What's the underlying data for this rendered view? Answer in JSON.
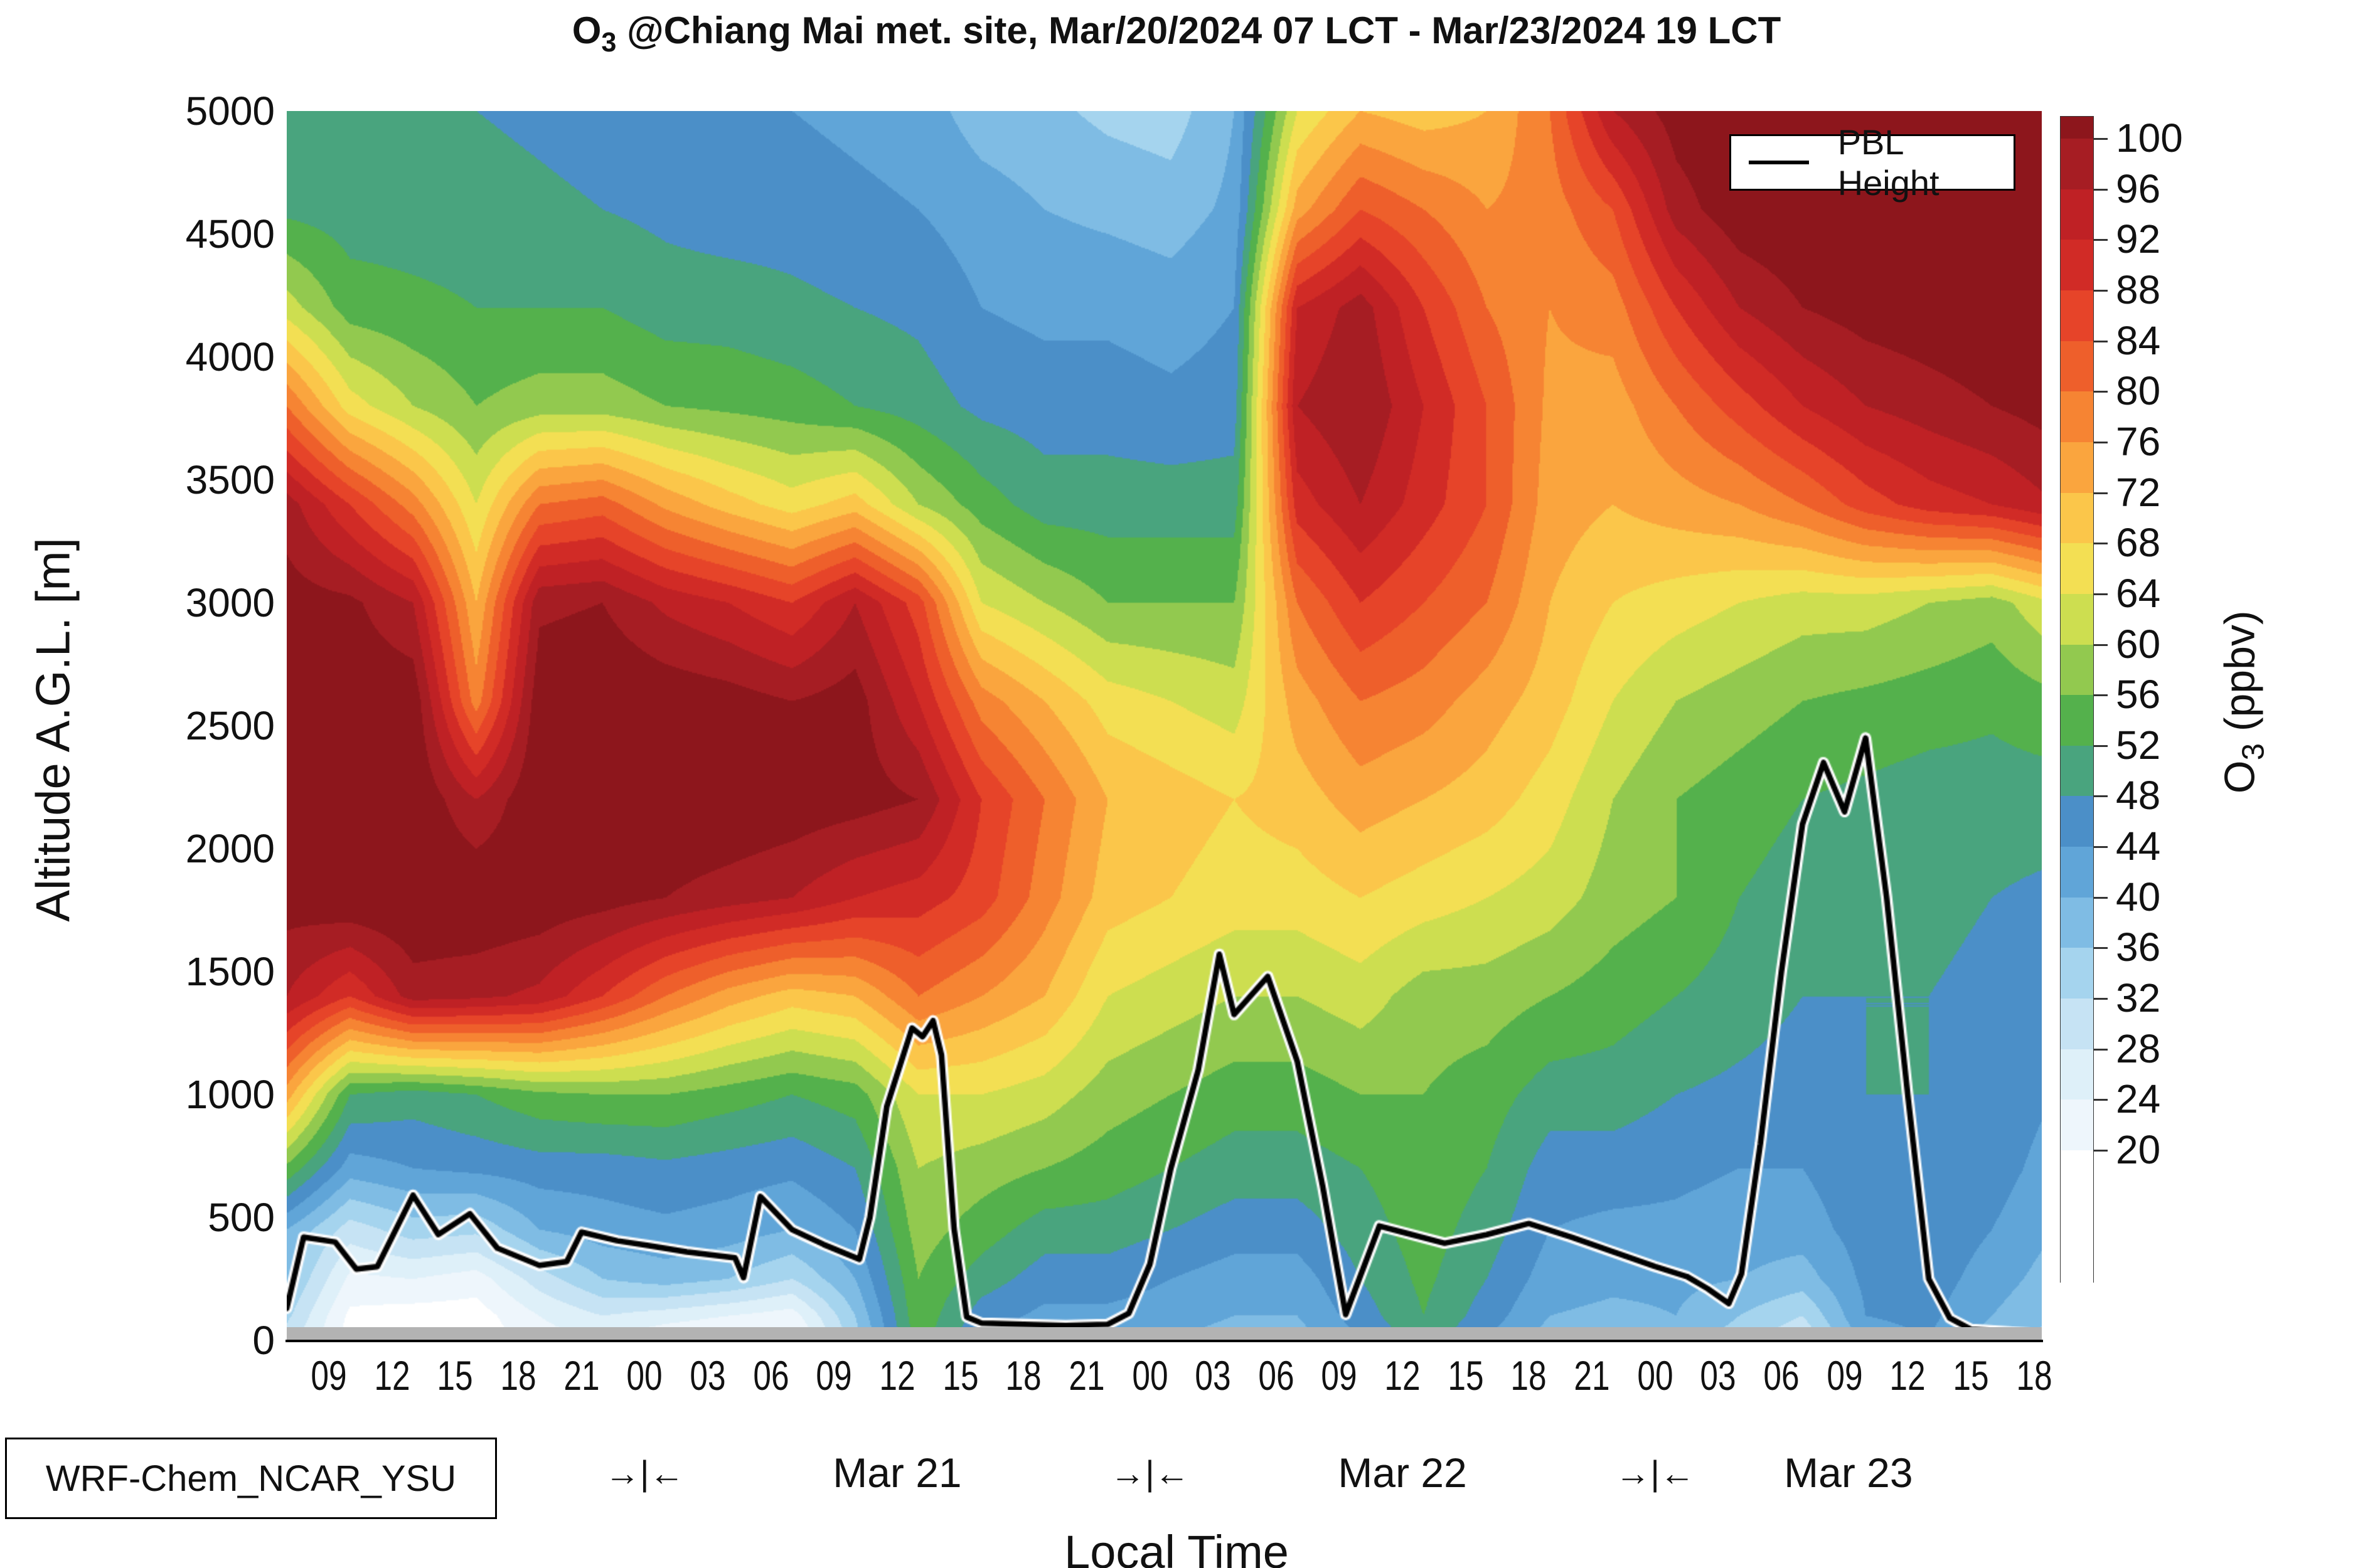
{
  "title": {
    "prefix": "O",
    "sub": "3",
    "rest": " @Chiang Mai met. site, Mar/20/2024 07 LCT - Mar/23/2024 19 LCT",
    "full": "O3 @Chiang Mai met. site, Mar/20/2024 07 LCT - Mar/23/2024 19 LCT"
  },
  "axes": {
    "ylabel": "Altitude A.G.L. [m]",
    "xlabel": "Local Time",
    "y_ticks": [
      5000,
      4500,
      4000,
      3500,
      3000,
      2500,
      2000,
      1500,
      1000,
      500,
      0
    ],
    "x_tick_labels": [
      "09",
      "12",
      "15",
      "18",
      "21",
      "00",
      "03",
      "06",
      "09",
      "12",
      "15",
      "18",
      "21",
      "00",
      "03",
      "06",
      "09",
      "12",
      "15",
      "18",
      "21",
      "00",
      "03",
      "06",
      "09",
      "12",
      "15",
      "18"
    ],
    "day_labels": [
      "Mar 21",
      "Mar 22",
      "Mar 23"
    ],
    "day_marker": "→|←"
  },
  "annotation_box": {
    "text": "WRF-Chem_NCAR_YSU"
  },
  "legend": {
    "label": "PBL Height",
    "line_color": "#000000"
  },
  "colorbar": {
    "label": {
      "prefix": "O",
      "sub": "3",
      "rest": " (ppbv)",
      "full": "O3 (ppbv)"
    },
    "ticks": [
      100,
      96,
      92,
      88,
      84,
      80,
      76,
      72,
      68,
      64,
      60,
      56,
      52,
      48,
      44,
      40,
      36,
      32,
      28,
      24,
      20
    ],
    "band_colors_low_to_high": [
      "#ffffff",
      "#eef6fc",
      "#def0f9",
      "#c6e3f4",
      "#a5d4ee",
      "#7fbce4",
      "#60a5d8",
      "#4b8fc8",
      "#49a47e",
      "#54b14c",
      "#92c94f",
      "#cdde50",
      "#f3df53",
      "#fbc64a",
      "#faa53e",
      "#f68433",
      "#ee5f2b",
      "#e64429",
      "#d12b26",
      "#bf2125",
      "#a61d23",
      "#8d161c"
    ]
  },
  "surface_bar_color": "#b3b3b3",
  "chart_data": {
    "type": "heatmap",
    "description": "Time-height filled contours of O3 (ppbv) with PBL height line; x = local time Mar/20/2024 07 LCT to Mar/23/2024 ~18 LCT, y = altitude AGL 0-5000 m",
    "value_units": "ppbv",
    "level_step": 4,
    "level_min": 20,
    "level_max": 100,
    "t_hours": [
      7,
      10,
      13,
      16,
      19,
      22,
      25,
      28,
      31,
      34,
      37,
      40,
      43,
      46,
      49,
      52,
      55,
      58,
      61,
      64,
      67,
      70,
      73,
      76,
      79,
      82,
      85,
      88,
      91
    ],
    "t_domain": [
      7,
      90.37
    ],
    "altitudes": [
      5000,
      4600,
      4200,
      3800,
      3400,
      3000,
      2600,
      2200,
      1800,
      1400,
      1000,
      700,
      450,
      250,
      100,
      0
    ],
    "values": [
      [
        50,
        49,
        48,
        48,
        47,
        46,
        45,
        44,
        44,
        43,
        42,
        38,
        37,
        35,
        34,
        40,
        64,
        72,
        70,
        72,
        80,
        96,
        102,
        104,
        104,
        105,
        105,
        105,
        105
      ],
      [
        51,
        50,
        50,
        50,
        49,
        48,
        47,
        46,
        46,
        45,
        44,
        42,
        40,
        39,
        38,
        41,
        74,
        84,
        80,
        76,
        78,
        84,
        98,
        103,
        104,
        104,
        105,
        105,
        105
      ],
      [
        62,
        54,
        53,
        52,
        52,
        52,
        50,
        50,
        49,
        48,
        47,
        44,
        43,
        43,
        42,
        44,
        92,
        98,
        88,
        80,
        76,
        78,
        88,
        96,
        100,
        102,
        103,
        104,
        104
      ],
      [
        80,
        66,
        60,
        56,
        58,
        58,
        56,
        55,
        54,
        52,
        50,
        47,
        46,
        46,
        45,
        46,
        96,
        100,
        92,
        84,
        75,
        74,
        80,
        86,
        92,
        96,
        98,
        100,
        102
      ],
      [
        98,
        88,
        78,
        64,
        80,
        82,
        75,
        70,
        66,
        70,
        60,
        54,
        50,
        50,
        50,
        50,
        90,
        96,
        90,
        84,
        74,
        72,
        74,
        76,
        80,
        86,
        90,
        92,
        96
      ],
      [
        102,
        101,
        96,
        72,
        99,
        100,
        95,
        92,
        88,
        96,
        86,
        64,
        60,
        56,
        56,
        56,
        80,
        88,
        84,
        80,
        72,
        68,
        66,
        64,
        62,
        62,
        60,
        58,
        64
      ],
      [
        103,
        103,
        103,
        78,
        103,
        104,
        103,
        102,
        100,
        102,
        92,
        78,
        72,
        66,
        64,
        62,
        74,
        80,
        78,
        74,
        70,
        64,
        60,
        58,
        56,
        55,
        54,
        53,
        55
      ],
      [
        103,
        104,
        104,
        96,
        104,
        104,
        104,
        104,
        103,
        102,
        100,
        88,
        80,
        72,
        70,
        68,
        70,
        74,
        72,
        70,
        66,
        60,
        56,
        54,
        52,
        51,
        50,
        50,
        50
      ],
      [
        102,
        104,
        104,
        104,
        103,
        102,
        100,
        98,
        96,
        92,
        90,
        86,
        78,
        70,
        68,
        66,
        66,
        68,
        66,
        64,
        62,
        58,
        56,
        52,
        50,
        49,
        49,
        48,
        47
      ],
      [
        96,
        88,
        98,
        97,
        95,
        88,
        80,
        74,
        70,
        72,
        80,
        76,
        72,
        64,
        62,
        60,
        60,
        62,
        58,
        58,
        56,
        54,
        52,
        50,
        48,
        48,
        48,
        47,
        45
      ],
      [
        74,
        52,
        50,
        52,
        55,
        56,
        56,
        54,
        52,
        54,
        64,
        64,
        62,
        58,
        56,
        54,
        54,
        56,
        56,
        54,
        50,
        50,
        48,
        47,
        46,
        48,
        48,
        47,
        44
      ],
      [
        55,
        42,
        44,
        45,
        46,
        46,
        47,
        46,
        45,
        48,
        60,
        58,
        56,
        54,
        52,
        50,
        50,
        52,
        55,
        52,
        46,
        46,
        45,
        44,
        44,
        47,
        48,
        46,
        42
      ],
      [
        40,
        30,
        34,
        33,
        40,
        42,
        43,
        42,
        40,
        44,
        58,
        54,
        50,
        50,
        48,
        46,
        46,
        50,
        54,
        50,
        44,
        43,
        43,
        42,
        42,
        46,
        47,
        44,
        40
      ],
      [
        37,
        23,
        24,
        22,
        30,
        36,
        38,
        36,
        32,
        40,
        56,
        50,
        46,
        46,
        44,
        42,
        42,
        48,
        53,
        48,
        42,
        41,
        41,
        40,
        38,
        45,
        46,
        42,
        38
      ],
      [
        33,
        19,
        18,
        18,
        24,
        28,
        26,
        24,
        22,
        36,
        55,
        46,
        43,
        43,
        42,
        40,
        40,
        46,
        52,
        46,
        40,
        39,
        40,
        36,
        32,
        44,
        45,
        40,
        36
      ],
      [
        30,
        18,
        17,
        17,
        22,
        24,
        20,
        18,
        18,
        34,
        54,
        44,
        41,
        40,
        40,
        38,
        38,
        44,
        50,
        44,
        38,
        37,
        38,
        34,
        28,
        42,
        44,
        38,
        34
      ]
    ],
    "pbl_height_series": {
      "name": "PBL Height",
      "units": "m",
      "points": [
        [
          7.0,
          130
        ],
        [
          7.8,
          420
        ],
        [
          9.3,
          400
        ],
        [
          10.3,
          290
        ],
        [
          11.3,
          300
        ],
        [
          12.0,
          420
        ],
        [
          13.0,
          590
        ],
        [
          14.2,
          430
        ],
        [
          15.7,
          515
        ],
        [
          17.0,
          375
        ],
        [
          19.0,
          305
        ],
        [
          20.3,
          320
        ],
        [
          21.0,
          440
        ],
        [
          22.7,
          405
        ],
        [
          24.2,
          385
        ],
        [
          26.0,
          360
        ],
        [
          28.3,
          335
        ],
        [
          28.7,
          255
        ],
        [
          29.5,
          585
        ],
        [
          31.0,
          450
        ],
        [
          32.5,
          390
        ],
        [
          34.2,
          330
        ],
        [
          34.7,
          500
        ],
        [
          35.5,
          950
        ],
        [
          36.7,
          1270
        ],
        [
          37.2,
          1235
        ],
        [
          37.7,
          1300
        ],
        [
          38.1,
          1160
        ],
        [
          38.7,
          455
        ],
        [
          39.3,
          95
        ],
        [
          40.0,
          70
        ],
        [
          42.0,
          65
        ],
        [
          44.0,
          60
        ],
        [
          46.0,
          65
        ],
        [
          47.0,
          110
        ],
        [
          48.0,
          310
        ],
        [
          49.0,
          700
        ],
        [
          50.3,
          1100
        ],
        [
          51.3,
          1570
        ],
        [
          52.0,
          1325
        ],
        [
          53.6,
          1480
        ],
        [
          55.0,
          1135
        ],
        [
          56.2,
          630
        ],
        [
          57.3,
          105
        ],
        [
          58.9,
          465
        ],
        [
          60.0,
          440
        ],
        [
          62.0,
          395
        ],
        [
          64.0,
          430
        ],
        [
          66.0,
          475
        ],
        [
          68.0,
          420
        ],
        [
          70.0,
          360
        ],
        [
          72.0,
          300
        ],
        [
          73.5,
          260
        ],
        [
          74.5,
          210
        ],
        [
          75.5,
          150
        ],
        [
          76.1,
          270
        ],
        [
          77.0,
          800
        ],
        [
          78.0,
          1500
        ],
        [
          79.0,
          2100
        ],
        [
          80.0,
          2350
        ],
        [
          81.0,
          2150
        ],
        [
          82.0,
          2450
        ],
        [
          83.0,
          1800
        ],
        [
          84.0,
          1000
        ],
        [
          85.0,
          250
        ],
        [
          86.0,
          90
        ],
        [
          87.0,
          45
        ],
        [
          90.3,
          25
        ]
      ]
    },
    "x_midnights_hours": [
      24,
      48,
      72
    ],
    "x_tick_hours": [
      9,
      12,
      15,
      18,
      21,
      24,
      27,
      30,
      33,
      36,
      39,
      42,
      45,
      48,
      51,
      54,
      57,
      60,
      63,
      66,
      69,
      72,
      75,
      78,
      81,
      84,
      87,
      90
    ],
    "ylim": [
      0,
      5000
    ],
    "grid": false,
    "legend_position": "top-right"
  }
}
